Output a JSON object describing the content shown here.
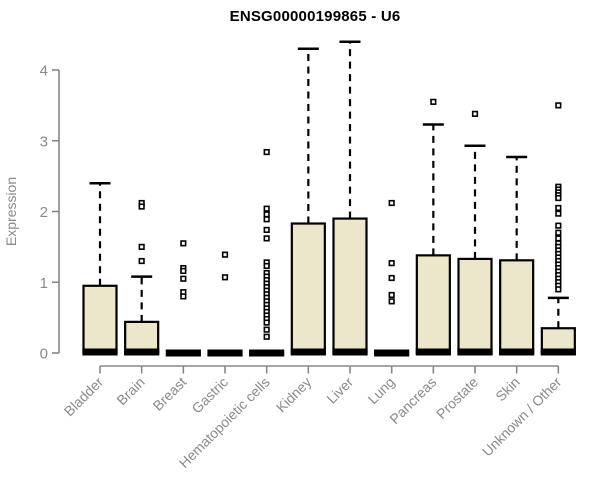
{
  "chart_data": {
    "type": "boxplot",
    "title": "ENSG00000199865 - U6",
    "ylabel": "Expression",
    "xlabel": "",
    "ylim": [
      0,
      4.45
    ],
    "yticks": [
      0,
      1,
      2,
      3,
      4
    ],
    "grid": false,
    "categories": [
      "Bladder",
      "Brain",
      "Breast",
      "Gastric",
      "Hematopoietic cells",
      "Kidney",
      "Liver",
      "Lung",
      "Pancreas",
      "Prostate",
      "Skin",
      "Unknown / Other"
    ],
    "boxes": [
      {
        "category": "Bladder",
        "q1": 0,
        "median": 0,
        "q3": 0.95,
        "whisker_low": 0,
        "whisker_high": 2.4,
        "outliers": []
      },
      {
        "category": "Brain",
        "q1": 0,
        "median": 0,
        "q3": 0.44,
        "whisker_low": 0,
        "whisker_high": 1.08,
        "outliers": [
          2.12,
          2.07,
          1.5,
          1.3
        ]
      },
      {
        "category": "Breast",
        "q1": 0,
        "median": 0,
        "q3": 0,
        "whisker_low": 0,
        "whisker_high": 0,
        "outliers": [
          1.55,
          1.2,
          1.16,
          1.05,
          0.86,
          0.8
        ]
      },
      {
        "category": "Gastric",
        "q1": 0,
        "median": 0,
        "q3": 0,
        "whisker_low": 0,
        "whisker_high": 0,
        "outliers": [
          1.39,
          1.07
        ]
      },
      {
        "category": "Hematopoietic cells",
        "q1": 0,
        "median": 0,
        "q3": 0,
        "whisker_low": 0,
        "whisker_high": 0,
        "outliers": [
          2.84,
          2.04,
          1.96,
          1.89,
          1.74,
          1.62,
          1.28,
          1.23,
          1.13,
          1.08,
          1.03,
          0.98,
          0.93,
          0.88,
          0.83,
          0.78,
          0.73,
          0.68,
          0.63,
          0.58,
          0.53,
          0.48,
          0.43,
          0.33,
          0.23
        ]
      },
      {
        "category": "Kidney",
        "q1": 0,
        "median": 0,
        "q3": 1.83,
        "whisker_low": 0,
        "whisker_high": 4.3,
        "outliers": []
      },
      {
        "category": "Liver",
        "q1": 0,
        "median": 0,
        "q3": 1.9,
        "whisker_low": 0,
        "whisker_high": 4.4,
        "outliers": []
      },
      {
        "category": "Lung",
        "q1": 0,
        "median": 0,
        "q3": 0,
        "whisker_low": 0,
        "whisker_high": 0,
        "outliers": [
          2.12,
          1.27,
          1.06,
          0.82,
          0.73
        ]
      },
      {
        "category": "Pancreas",
        "q1": 0,
        "median": 0,
        "q3": 1.38,
        "whisker_low": 0,
        "whisker_high": 3.23,
        "outliers": [
          3.55
        ]
      },
      {
        "category": "Prostate",
        "q1": 0,
        "median": 0,
        "q3": 1.33,
        "whisker_low": 0,
        "whisker_high": 2.93,
        "outliers": [
          3.38
        ]
      },
      {
        "category": "Skin",
        "q1": 0,
        "median": 0,
        "q3": 1.31,
        "whisker_low": 0,
        "whisker_high": 2.77,
        "outliers": []
      },
      {
        "category": "Unknown / Other",
        "q1": 0,
        "median": 0,
        "q3": 0.35,
        "whisker_low": 0,
        "whisker_high": 0.78,
        "outliers": [
          3.5,
          2.35,
          2.31,
          2.27,
          2.23,
          2.19,
          2.05,
          1.97,
          1.8,
          1.7,
          1.62,
          1.55,
          1.5,
          1.45,
          1.4,
          1.35,
          1.3,
          1.25,
          1.2,
          1.15,
          1.1,
          1.05,
          1.0,
          0.95,
          0.9
        ]
      }
    ],
    "colors": {
      "box_fill": "#ece7cb",
      "box_border": "#000000",
      "median": "#000000",
      "whisker": "#000000",
      "outlier_stroke": "#000000",
      "outlier_fill": "#ffffff",
      "axis": "#878787",
      "tick_label": "#8a8a8a",
      "title": "#000000",
      "background": "#ffffff"
    },
    "legend": null
  }
}
